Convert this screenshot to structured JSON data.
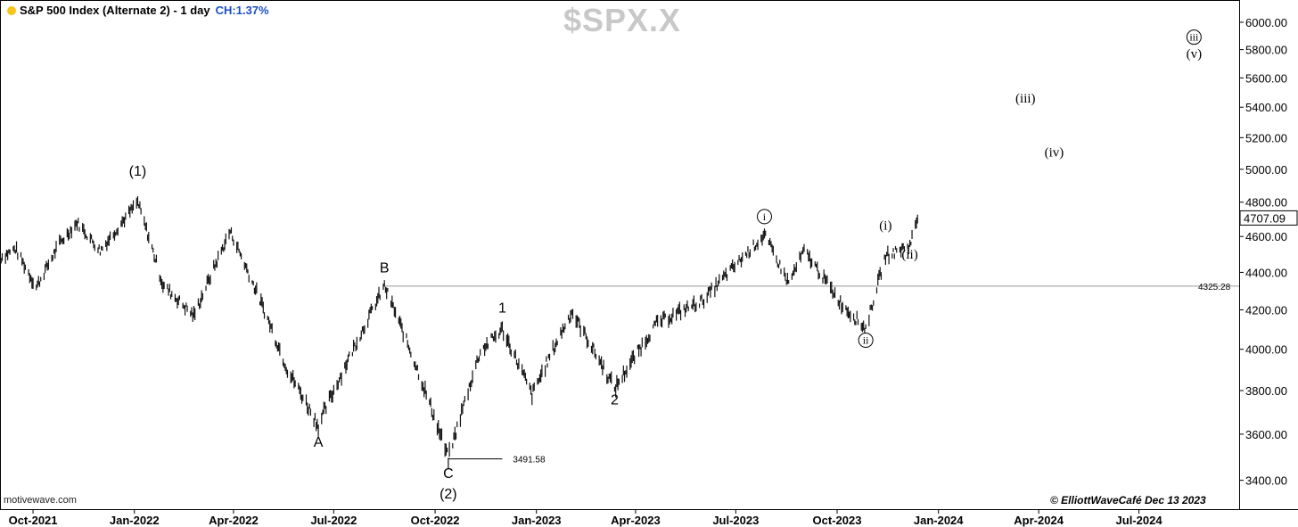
{
  "header": {
    "title": "S&P 500 Index (Alternate 2) - 1 day",
    "change": "CH:1.37%",
    "status_color": "#f5c518",
    "change_color": "#1a4fc4"
  },
  "symbol": "$SPX.X",
  "source": "motivewave.com",
  "copyright": "© ElliottWaveCafé Dec 13 2023",
  "chart_data": {
    "type": "ohlc",
    "price_axis": {
      "labels": [
        "3400.00",
        "3600.00",
        "3800.00",
        "4000.00",
        "4200.00",
        "4400.00",
        "4600.00",
        "4800.00",
        "5000.00",
        "5200.00",
        "5400.00",
        "5600.00",
        "5800.00",
        "6000.00"
      ],
      "values": [
        3400,
        3600,
        3800,
        4000,
        4200,
        4400,
        4600,
        4800,
        5000,
        5200,
        5400,
        5600,
        5800,
        6000
      ],
      "scale": "log",
      "range": [
        3350,
        6100
      ]
    },
    "time_axis": {
      "labels": [
        "Oct-2021",
        "Jan-2022",
        "Apr-2022",
        "Jul-2022",
        "Oct-2022",
        "Jan-2023",
        "Apr-2023",
        "Jul-2023",
        "Oct-2023",
        "Jan-2024",
        "Apr-2024",
        "Jul-2024"
      ],
      "range": [
        "2021-09-01",
        "2024-09-30"
      ]
    },
    "price_path": [
      {
        "date": "2021-09-01",
        "price": 4480
      },
      {
        "date": "2021-09-15",
        "price": 4530
      },
      {
        "date": "2021-10-04",
        "price": 4320
      },
      {
        "date": "2021-10-25",
        "price": 4560
      },
      {
        "date": "2021-11-10",
        "price": 4680
      },
      {
        "date": "2021-12-01",
        "price": 4520
      },
      {
        "date": "2022-01-04",
        "price": 4800
      },
      {
        "date": "2022-01-27",
        "price": 4330
      },
      {
        "date": "2022-02-24",
        "price": 4170
      },
      {
        "date": "2022-03-29",
        "price": 4630
      },
      {
        "date": "2022-05-20",
        "price": 3900
      },
      {
        "date": "2022-06-17",
        "price": 3640
      },
      {
        "date": "2022-08-16",
        "price": 4325
      },
      {
        "date": "2022-09-13",
        "price": 3930
      },
      {
        "date": "2022-10-13",
        "price": 3491.58
      },
      {
        "date": "2022-11-11",
        "price": 3990
      },
      {
        "date": "2022-12-01",
        "price": 4100
      },
      {
        "date": "2022-12-28",
        "price": 3780
      },
      {
        "date": "2023-02-02",
        "price": 4190
      },
      {
        "date": "2023-03-13",
        "price": 3810
      },
      {
        "date": "2023-04-20",
        "price": 4130
      },
      {
        "date": "2023-06-01",
        "price": 4250
      },
      {
        "date": "2023-07-27",
        "price": 4607
      },
      {
        "date": "2023-08-18",
        "price": 4340
      },
      {
        "date": "2023-09-01",
        "price": 4520
      },
      {
        "date": "2023-10-05",
        "price": 4230
      },
      {
        "date": "2023-10-27",
        "price": 4103
      },
      {
        "date": "2023-11-14",
        "price": 4490
      },
      {
        "date": "2023-12-06",
        "price": 4550
      },
      {
        "date": "2023-12-13",
        "price": 4707.09
      }
    ],
    "last_price": "4707.09",
    "levels": [
      {
        "label": "4325.28",
        "price": 4325.28,
        "from": "2022-08-16"
      },
      {
        "label": "3491.58",
        "price": 3491.58,
        "from": "2022-10-13",
        "to": "2022-12-01"
      }
    ],
    "wave_labels": [
      {
        "text": "(1)",
        "date": "2022-01-04",
        "price": 4960,
        "style": "plain"
      },
      {
        "text": "A",
        "date": "2022-06-17",
        "price": 3545,
        "style": "plain"
      },
      {
        "text": "B",
        "date": "2022-08-16",
        "price": 4400,
        "style": "plain"
      },
      {
        "text": "C",
        "date": "2022-10-13",
        "price": 3410,
        "style": "plain"
      },
      {
        "text": "(2)",
        "date": "2022-10-13",
        "price": 3325,
        "style": "plain"
      },
      {
        "text": "1",
        "date": "2022-12-01",
        "price": 4185,
        "style": "plain"
      },
      {
        "text": "2",
        "date": "2023-03-13",
        "price": 3735,
        "style": "plain"
      },
      {
        "text": "i",
        "date": "2023-07-27",
        "price": 4715,
        "style": "circled"
      },
      {
        "text": "(i)",
        "date": "2023-11-14",
        "price": 4640,
        "style": "serif"
      },
      {
        "text": "(ii)",
        "date": "2023-12-06",
        "price": 4475,
        "style": "serif"
      },
      {
        "text": "ii",
        "date": "2023-10-27",
        "price": 4045,
        "style": "circled"
      },
      {
        "text": "(iii)",
        "date": "2024-03-20",
        "price": 5430,
        "style": "serif"
      },
      {
        "text": "(iv)",
        "date": "2024-04-15",
        "price": 5080,
        "style": "serif"
      },
      {
        "text": "iii",
        "date": "2024-08-20",
        "price": 5890,
        "style": "circled"
      },
      {
        "text": "(v)",
        "date": "2024-08-20",
        "price": 5740,
        "style": "serif"
      }
    ]
  }
}
